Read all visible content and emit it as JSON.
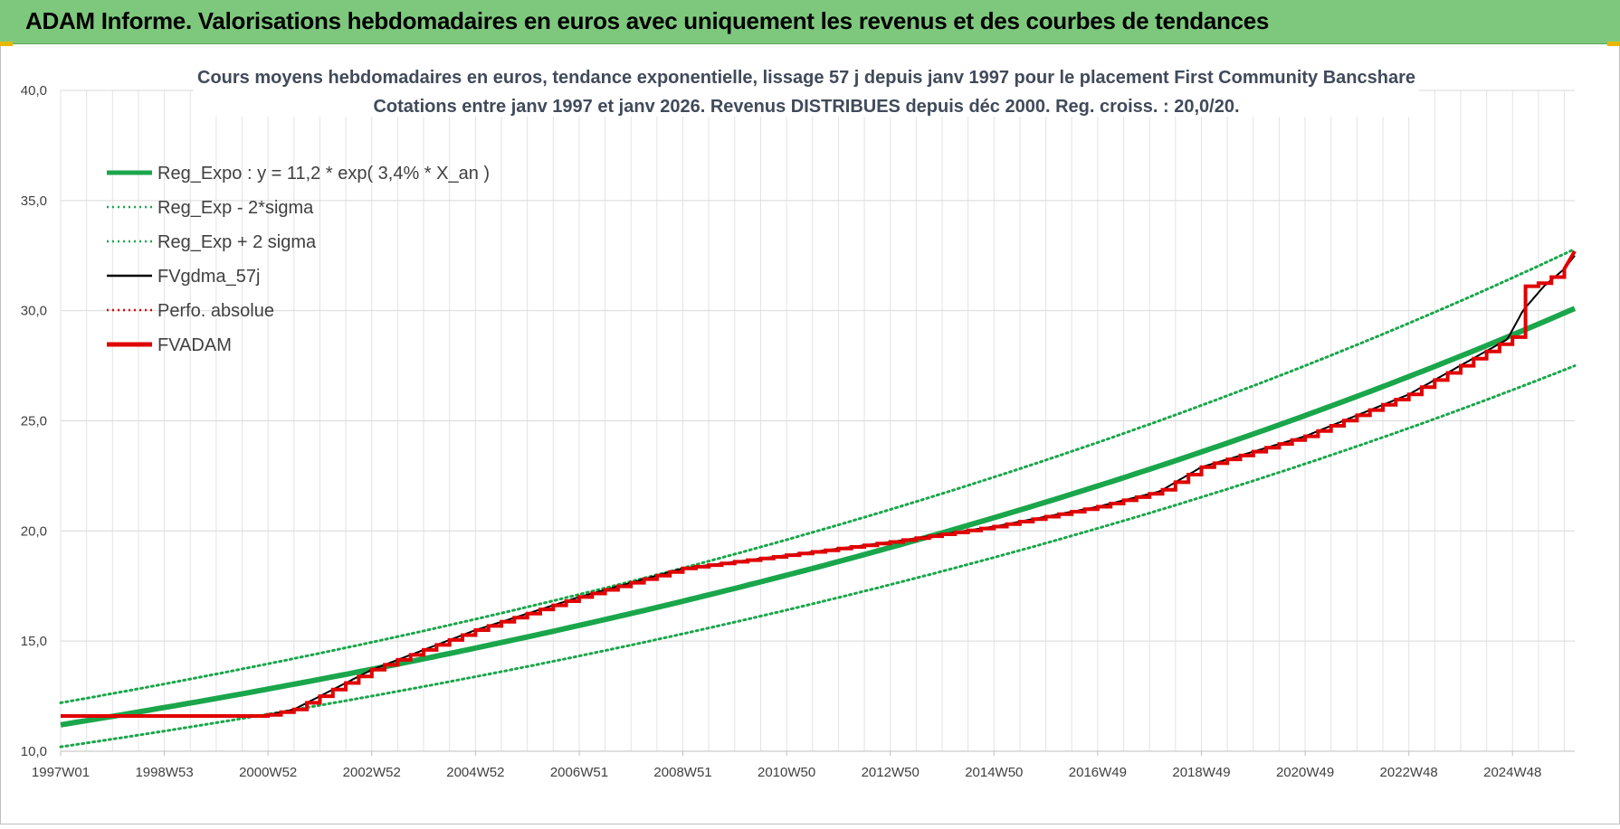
{
  "banner": {
    "title": "ADAM Informe. Valorisations hebdomadaires en euros avec uniquement les revenus et des courbes de tendances"
  },
  "colors": {
    "banner_bg": "#7dc87d",
    "green": "#1aa64b",
    "red": "#e10000",
    "black": "#000000",
    "title_text": "#404a5a",
    "axis_text": "#404040"
  },
  "chart_data": {
    "type": "line",
    "title": "Cours moyens hebdomadaires en euros, tendance exponentielle, lissage 57 j depuis janv 1997  pour le placement First Community Bancshare",
    "subtitle": "Cotations entre janv 1997 et janv 2026. Revenus DISTRIBUES depuis déc 2000.  Reg. croiss. : 20,0/20.",
    "xlabel": "",
    "ylabel": "",
    "xlim": [
      1997.0,
      2026.2
    ],
    "ylim": [
      10,
      40
    ],
    "y_ticks": [
      "10,0",
      "15,0",
      "20,0",
      "25,0",
      "30,0",
      "35,0",
      "40,0"
    ],
    "y_tick_values": [
      10,
      15,
      20,
      25,
      30,
      35,
      40
    ],
    "x_ticks": [
      {
        "label": "1997W01",
        "x": 1997.0
      },
      {
        "label": "1998W53",
        "x": 1999.0
      },
      {
        "label": "2000W52",
        "x": 2001.0
      },
      {
        "label": "2002W52",
        "x": 2003.0
      },
      {
        "label": "2004W52",
        "x": 2005.0
      },
      {
        "label": "2006W51",
        "x": 2007.0
      },
      {
        "label": "2008W51",
        "x": 2009.0
      },
      {
        "label": "2010W50",
        "x": 2011.0
      },
      {
        "label": "2012W50",
        "x": 2013.0
      },
      {
        "label": "2014W50",
        "x": 2015.0
      },
      {
        "label": "2016W49",
        "x": 2017.0
      },
      {
        "label": "2018W49",
        "x": 2019.0
      },
      {
        "label": "2020W49",
        "x": 2021.0
      },
      {
        "label": "2022W48",
        "x": 2023.0
      },
      {
        "label": "2024W48",
        "x": 2025.0
      }
    ],
    "legend": {
      "position": "top-left",
      "entries": [
        {
          "name": "Reg_Expo : y = 11,2 * exp( 3,4% *  X_an )",
          "color": "#1aa64b",
          "style": "solid-thick"
        },
        {
          "name": "Reg_Exp - 2*sigma",
          "color": "#1aa64b",
          "style": "dotted"
        },
        {
          "name": "Reg_Exp + 2 sigma",
          "color": "#1aa64b",
          "style": "dotted"
        },
        {
          "name": "FVgdma_57j",
          "color": "#000000",
          "style": "solid-thin"
        },
        {
          "name": "Perfo. absolue",
          "color": "#e10000",
          "style": "dotted"
        },
        {
          "name": "FVADAM",
          "color": "#e10000",
          "style": "solid-thick"
        }
      ]
    },
    "series": [
      {
        "name": "Reg_Expo",
        "formula": {
          "a": 11.2,
          "rate": 0.034
        },
        "x": [
          1997.0,
          2026.2
        ],
        "values": [
          11.2,
          30.1
        ]
      },
      {
        "name": "Reg_Exp - 2*sigma",
        "x": [
          1997.0,
          2026.2
        ],
        "values": [
          10.2,
          27.5
        ]
      },
      {
        "name": "Reg_Exp + 2 sigma",
        "x": [
          1997.0,
          2026.2
        ],
        "values": [
          12.2,
          32.8
        ]
      },
      {
        "name": "FVgdma_57j",
        "x": [
          1997.0,
          2000.9,
          2001.5,
          2003.0,
          2005.0,
          2007.0,
          2009.0,
          2011.0,
          2013.0,
          2015.0,
          2017.0,
          2018.2,
          2019.0,
          2021.0,
          2023.0,
          2024.9,
          2025.2,
          2025.6,
          2026.0,
          2026.2
        ],
        "values": [
          11.6,
          11.6,
          11.9,
          13.7,
          15.5,
          17.0,
          18.3,
          18.9,
          19.5,
          20.2,
          21.1,
          21.8,
          22.9,
          24.3,
          26.2,
          28.7,
          30.0,
          31.1,
          31.9,
          32.5
        ]
      },
      {
        "name": "FVADAM",
        "x": [
          1997.0,
          2000.9,
          2001.5,
          2003.0,
          2005.0,
          2007.0,
          2009.0,
          2011.0,
          2013.0,
          2015.0,
          2017.0,
          2018.2,
          2019.0,
          2021.0,
          2023.0,
          2025.0,
          2025.05,
          2025.6,
          2026.0,
          2026.2
        ],
        "values": [
          11.6,
          11.6,
          11.9,
          13.7,
          15.5,
          17.0,
          18.3,
          18.9,
          19.5,
          20.2,
          21.1,
          21.8,
          22.9,
          24.3,
          26.2,
          28.8,
          31.0,
          31.3,
          31.9,
          32.7
        ]
      }
    ]
  }
}
